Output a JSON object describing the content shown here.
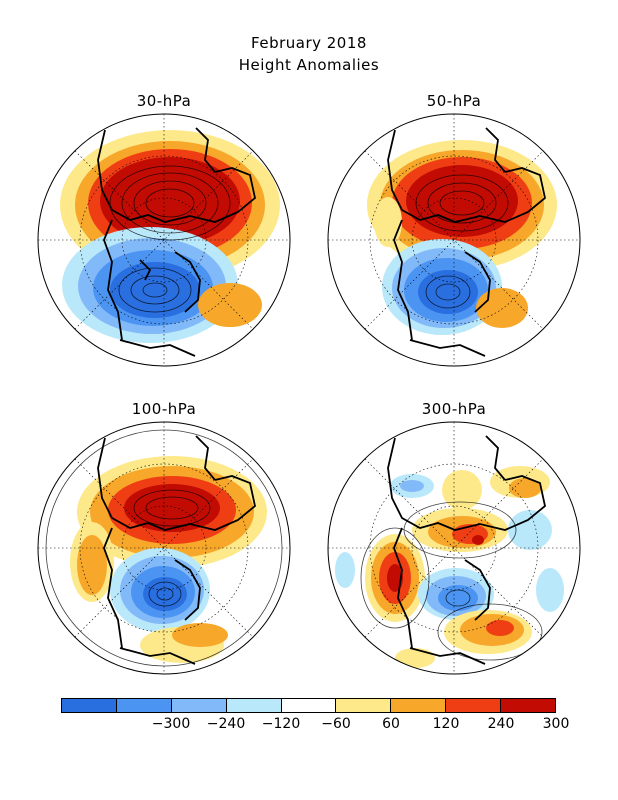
{
  "title": {
    "line1": "February 2018",
    "line2": "Height Anomalies"
  },
  "panels": [
    {
      "label": "30-hPa"
    },
    {
      "label": "50-hPa"
    },
    {
      "label": "100-hPa"
    },
    {
      "label": "300-hPa"
    }
  ],
  "colorbar": {
    "colors": [
      "#2a6fe0",
      "#4b94f2",
      "#82b9f8",
      "#b9e8fb",
      "#ffffff",
      "#fde98a",
      "#f7a72a",
      "#ef3e14",
      "#c10b03"
    ],
    "labels": [
      "−300",
      "−240",
      "−120",
      "−60",
      "60",
      "120",
      "240",
      "300"
    ]
  }
}
